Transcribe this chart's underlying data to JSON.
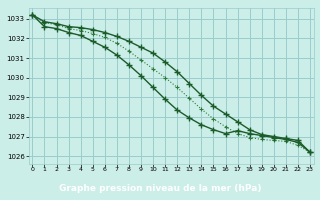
{
  "x": [
    0,
    1,
    2,
    3,
    4,
    5,
    6,
    7,
    8,
    9,
    10,
    11,
    12,
    13,
    14,
    15,
    16,
    17,
    18,
    19,
    20,
    21,
    22,
    23
  ],
  "line1": [
    1033.2,
    1032.85,
    1032.75,
    1032.6,
    1032.55,
    1032.45,
    1032.3,
    1032.1,
    1031.85,
    1031.55,
    1031.25,
    1030.8,
    1030.3,
    1029.7,
    1029.1,
    1028.55,
    1028.15,
    1027.75,
    1027.35,
    1027.1,
    1027.0,
    1026.9,
    1026.8,
    1026.2
  ],
  "line2": [
    1033.2,
    1032.8,
    1032.7,
    1032.5,
    1032.4,
    1032.25,
    1032.05,
    1031.75,
    1031.35,
    1030.9,
    1030.45,
    1030.0,
    1029.5,
    1028.95,
    1028.4,
    1027.9,
    1027.5,
    1027.15,
    1026.95,
    1026.85,
    1026.8,
    1026.75,
    1026.55,
    1026.2
  ],
  "line3": [
    1033.2,
    1032.6,
    1032.5,
    1032.3,
    1032.15,
    1031.85,
    1031.55,
    1031.15,
    1030.65,
    1030.1,
    1029.5,
    1028.9,
    1028.35,
    1027.95,
    1027.6,
    1027.35,
    1027.15,
    1027.3,
    1027.15,
    1027.05,
    1026.95,
    1026.85,
    1026.7,
    1026.2
  ],
  "bg_color": "#cceee8",
  "grid_color": "#99cccc",
  "line_color_dark": "#1a5c2a",
  "line_color_mid": "#2d7a3a",
  "xlabel": "Graphe pression niveau de la mer (hPa)",
  "xlabel_bg": "#336633",
  "xlabel_color": "#ffffff",
  "ylim_min": 1025.6,
  "ylim_max": 1033.55,
  "yticks": [
    1026,
    1027,
    1028,
    1029,
    1030,
    1031,
    1032,
    1033
  ],
  "markersize": 4,
  "linewidth": 1.0
}
